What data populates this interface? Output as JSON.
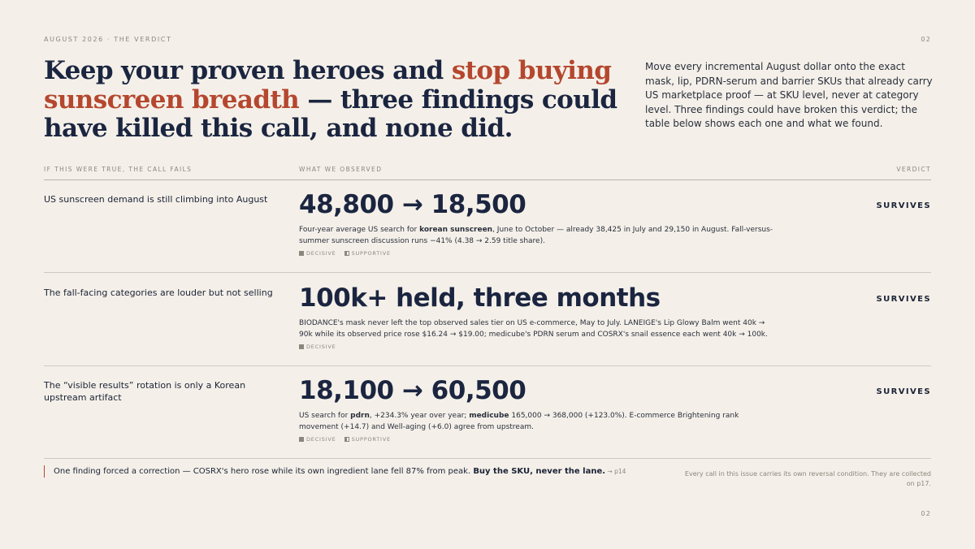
{
  "header": {
    "kicker": "AUGUST 2026 · THE VERDICT",
    "page": "02"
  },
  "title": {
    "before": "Keep your proven heroes and ",
    "highlight": "stop buying sunscreen breadth",
    "after": " — three findings could have killed this call, and none did."
  },
  "intro": "Move every incremental August dollar onto the exact mask, lip, PDRN-serum and barrier SKUs that already carry US marketplace proof — at SKU level, never at category level. Three findings could have broken this verdict; the table below shows each one and what we found.",
  "table": {
    "headers": [
      "IF THIS WERE TRUE, THE CALL FAILS",
      "WHAT WE OBSERVED",
      "VERDICT"
    ],
    "rows": [
      {
        "condition": "US sunscreen demand is still climbing into August",
        "headline": "48,800 → 18,500",
        "detail": [
          {
            "text": "Four-year average US search for "
          },
          {
            "text": "korean sunscreen",
            "bold": true
          },
          {
            "text": ", June to October — already 38,425 in July and 29,150 in August. Fall-versus-summer sunscreen discussion runs −41% (4.38 → 2.59 title share)."
          }
        ],
        "tags": [
          {
            "label": "DECISIVE",
            "icon": "filled"
          },
          {
            "label": "SUPPORTIVE",
            "icon": "half"
          }
        ],
        "verdict": "SURVIVES"
      },
      {
        "condition": "The fall-facing categories are louder but not selling",
        "headline": "100k+ held, three months",
        "detail": [
          {
            "text": "BIODANCE's mask never left the top observed sales tier on US e-commerce, May to July. LANEIGE's Lip Glowy Balm went 40k → 90k while its observed price rose $16.24 → $19.00; medicube's PDRN serum and COSRX's snail essence each went 40k → 100k."
          }
        ],
        "tags": [
          {
            "label": "DECISIVE",
            "icon": "filled"
          }
        ],
        "verdict": "SURVIVES"
      },
      {
        "condition": "The “visible results” rotation is only a Korean upstream artifact",
        "headline": "18,100 → 60,500",
        "detail": [
          {
            "text": "US search for "
          },
          {
            "text": "pdrn",
            "bold": true
          },
          {
            "text": ", +234.3% year over year; "
          },
          {
            "text": "medicube",
            "bold": true
          },
          {
            "text": " 165,000 → 368,000 (+123.0%). E-commerce Brightening rank movement (+14.7) and Well-aging (+6.0) agree from upstream."
          }
        ],
        "tags": [
          {
            "label": "DECISIVE",
            "icon": "filled"
          },
          {
            "label": "SUPPORTIVE",
            "icon": "half"
          }
        ],
        "verdict": "SURVIVES"
      }
    ]
  },
  "footer": {
    "note": [
      {
        "text": "One finding forced a correction — COSRX's hero rose while its own ingredient lane fell 87% from peak. "
      },
      {
        "text": "Buy the SKU, never the lane.",
        "bold": true
      },
      {
        "text": " → p14",
        "small": true
      }
    ],
    "aside": "Every call in this issue carries its own reversal condition. They are collected on p17.",
    "page": "02"
  }
}
